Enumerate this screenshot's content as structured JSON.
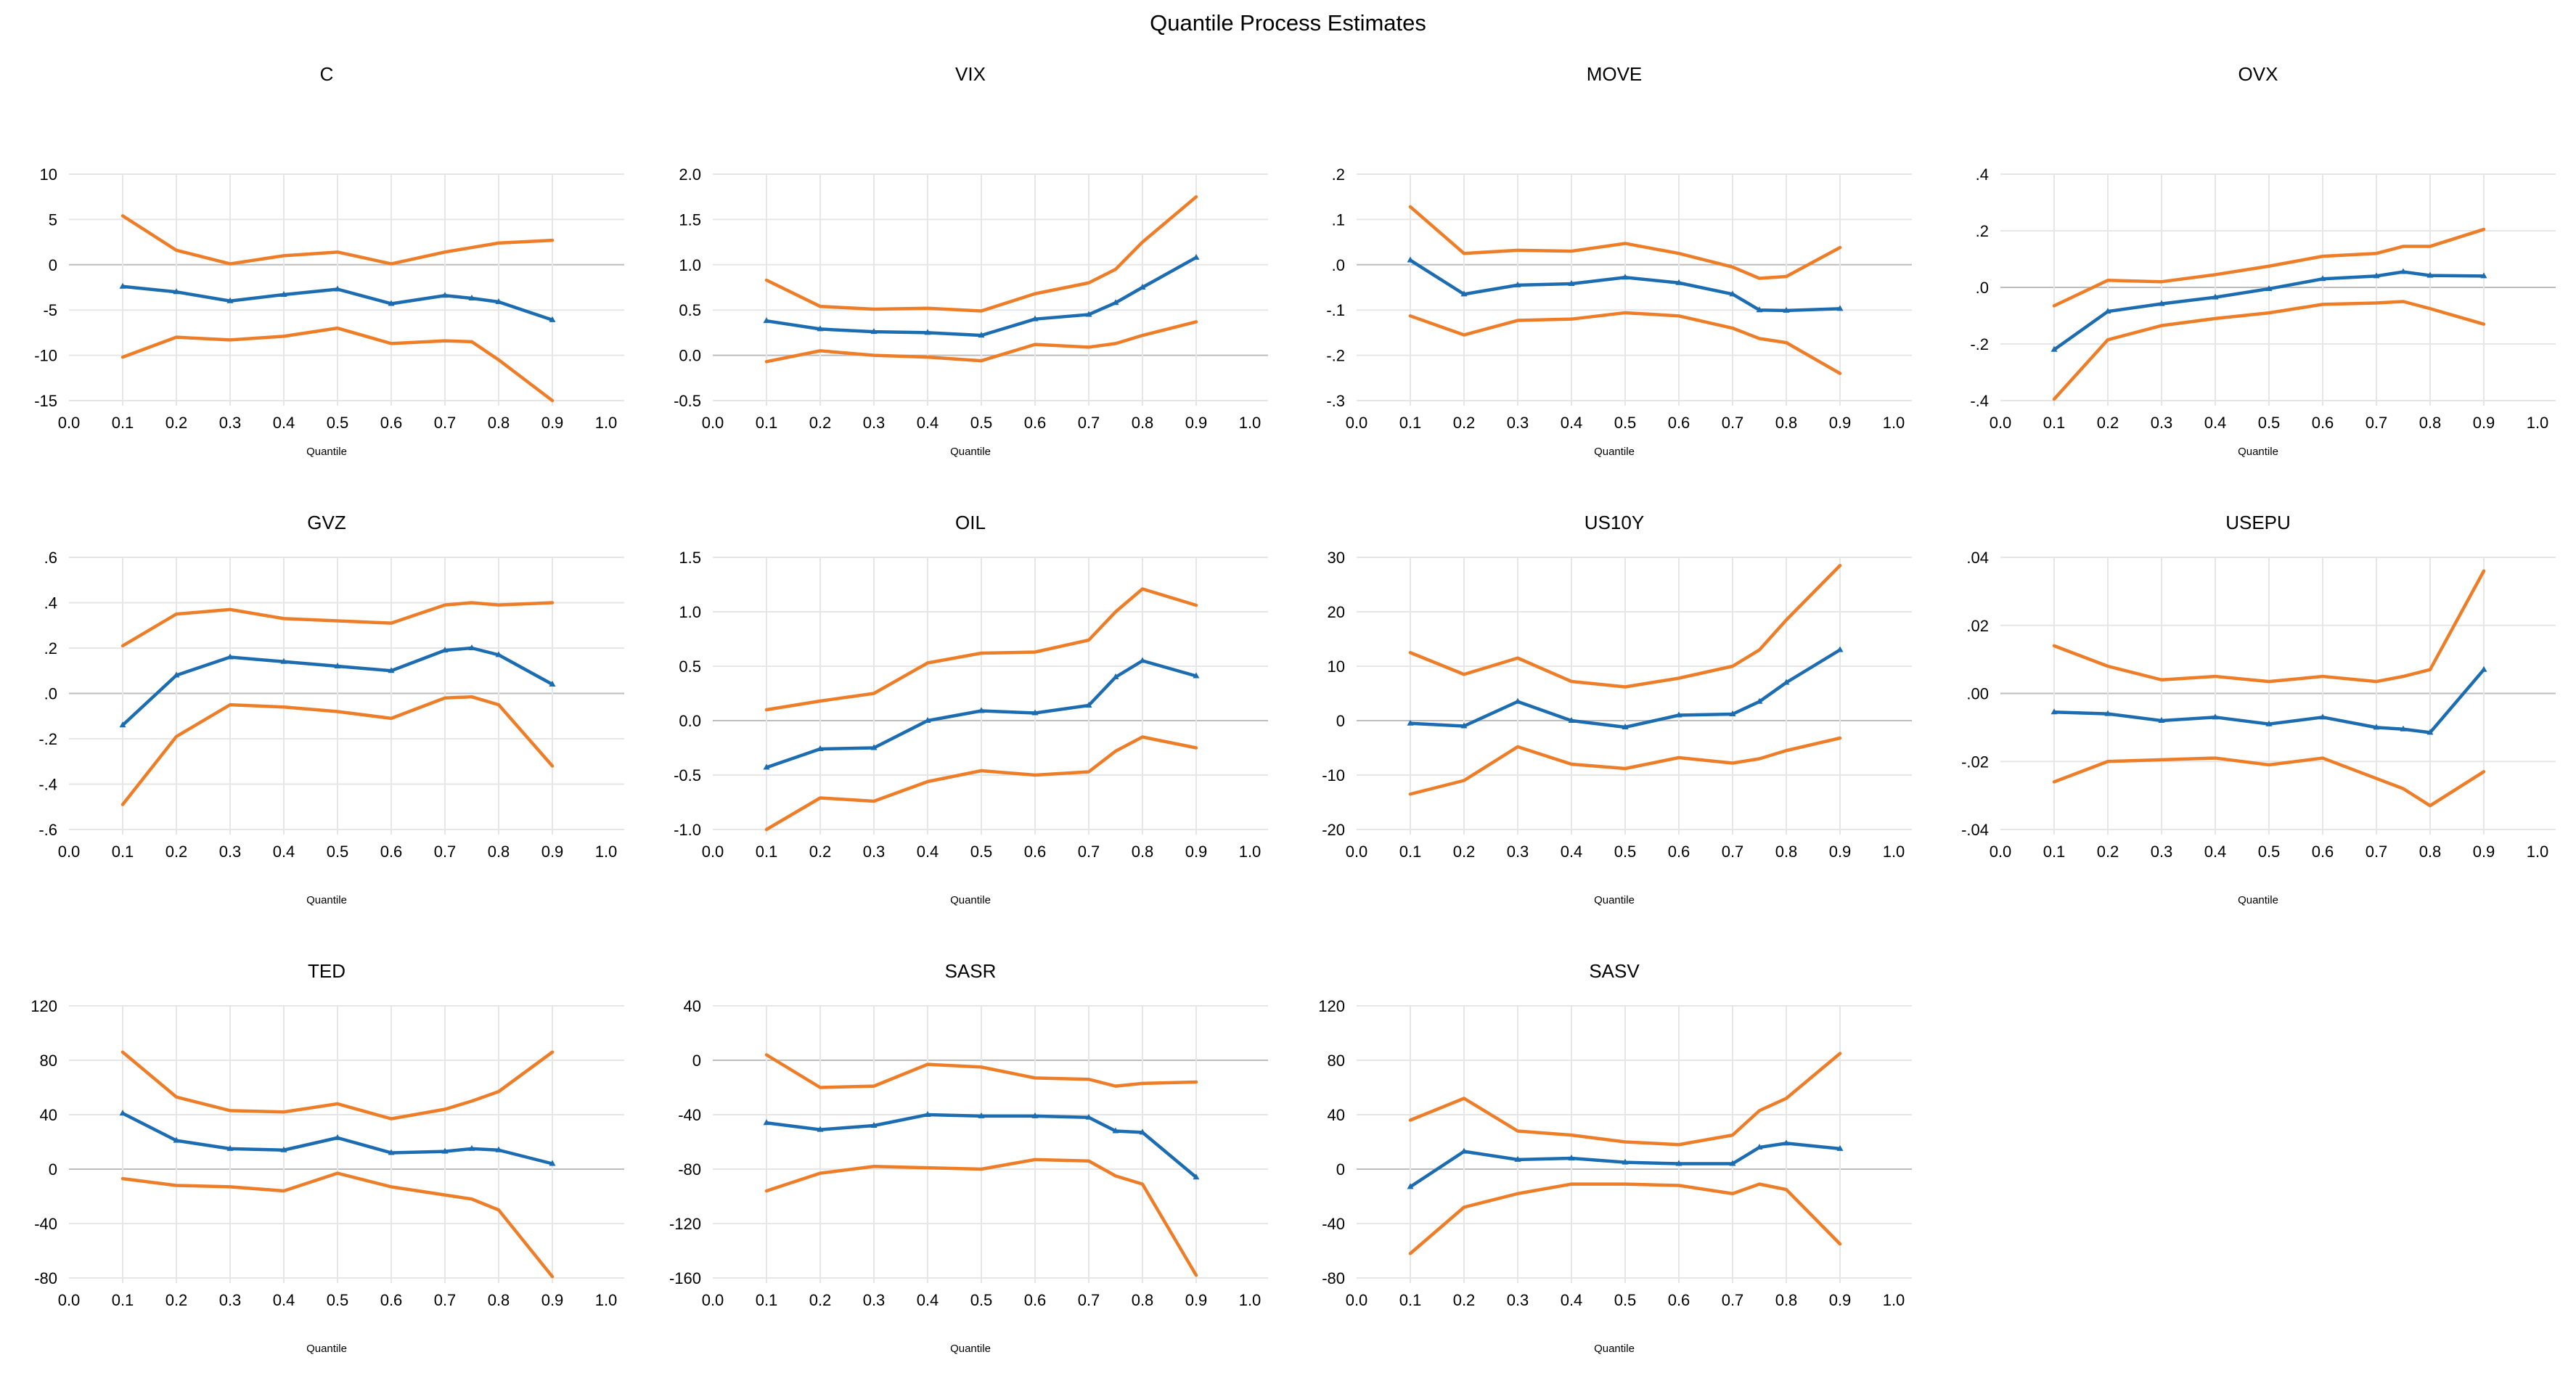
{
  "figure": {
    "title": "Quantile Process Estimates",
    "background": "#ffffff"
  },
  "colors": {
    "estimate_line": "#1b6cb0",
    "ci_line": "#ee7d28",
    "gridline": "#e6e6e6",
    "zero_line": "#bdbdbd",
    "text": "#000000"
  },
  "layout": {
    "columns": 4,
    "rows": 3,
    "grid": "on",
    "legend": "none",
    "x_axis_label": "Quantile"
  },
  "chart_data": [
    {
      "id": "C",
      "title": "C",
      "type": "line",
      "xlabel": "Quantile",
      "x": [
        0.1,
        0.2,
        0.3,
        0.4,
        0.5,
        0.6,
        0.7,
        0.75,
        0.8,
        0.9
      ],
      "x_ticks": [
        0.0,
        0.1,
        0.2,
        0.3,
        0.4,
        0.5,
        0.6,
        0.7,
        0.8,
        0.9,
        1.0
      ],
      "x_tick_labels": [
        "0.0",
        "0.1",
        "0.2",
        "0.3",
        "0.4",
        "0.5",
        "0.6",
        "0.7",
        "0.8",
        "0.9",
        "1.0"
      ],
      "ylim": [
        -15,
        10
      ],
      "y_ticks": [
        10,
        5,
        0,
        -5,
        -10,
        -15
      ],
      "y_tick_labels": [
        "10",
        "5",
        "0",
        "-5",
        "-10",
        "-15"
      ],
      "series": [
        {
          "name": "estimate",
          "values": [
            -2.4,
            -3.0,
            -4.0,
            -3.3,
            -2.7,
            -4.3,
            -3.4,
            -3.7,
            -4.1,
            -6.1
          ]
        },
        {
          "name": "upper_ci",
          "values": [
            5.4,
            1.6,
            0.1,
            1.0,
            1.4,
            0.1,
            1.4,
            1.9,
            2.4,
            2.7
          ]
        },
        {
          "name": "lower_ci",
          "values": [
            -10.2,
            -8.0,
            -8.3,
            -7.9,
            -7.0,
            -8.7,
            -8.4,
            -8.5,
            -10.5,
            -15.0
          ]
        }
      ]
    },
    {
      "id": "VIX",
      "title": "VIX",
      "type": "line",
      "xlabel": "Quantile",
      "x": [
        0.1,
        0.2,
        0.3,
        0.4,
        0.5,
        0.6,
        0.7,
        0.75,
        0.8,
        0.9
      ],
      "x_ticks": [
        0.0,
        0.1,
        0.2,
        0.3,
        0.4,
        0.5,
        0.6,
        0.7,
        0.8,
        0.9,
        1.0
      ],
      "x_tick_labels": [
        "0.0",
        "0.1",
        "0.2",
        "0.3",
        "0.4",
        "0.5",
        "0.6",
        "0.7",
        "0.8",
        "0.9",
        "1.0"
      ],
      "ylim": [
        -0.5,
        2.0
      ],
      "y_ticks": [
        2.0,
        1.5,
        1.0,
        0.5,
        0.0,
        -0.5
      ],
      "y_tick_labels": [
        "2.0",
        "1.5",
        "1.0",
        "0.5",
        "0.0",
        "-0.5"
      ],
      "series": [
        {
          "name": "estimate",
          "values": [
            0.38,
            0.29,
            0.26,
            0.25,
            0.22,
            0.4,
            0.45,
            0.58,
            0.75,
            1.08
          ]
        },
        {
          "name": "upper_ci",
          "values": [
            0.83,
            0.54,
            0.51,
            0.52,
            0.49,
            0.68,
            0.8,
            0.95,
            1.25,
            1.75
          ]
        },
        {
          "name": "lower_ci",
          "values": [
            -0.07,
            0.05,
            0.0,
            -0.02,
            -0.06,
            0.12,
            0.09,
            0.13,
            0.22,
            0.37
          ]
        }
      ]
    },
    {
      "id": "MOVE",
      "title": "MOVE",
      "type": "line",
      "xlabel": "Quantile",
      "x": [
        0.1,
        0.2,
        0.3,
        0.4,
        0.5,
        0.6,
        0.7,
        0.75,
        0.8,
        0.9
      ],
      "x_ticks": [
        0.0,
        0.1,
        0.2,
        0.3,
        0.4,
        0.5,
        0.6,
        0.7,
        0.8,
        0.9,
        1.0
      ],
      "x_tick_labels": [
        "0.0",
        "0.1",
        "0.2",
        "0.3",
        "0.4",
        "0.5",
        "0.6",
        "0.7",
        "0.8",
        "0.9",
        "1.0"
      ],
      "ylim": [
        -0.3,
        0.2
      ],
      "y_ticks": [
        0.2,
        0.1,
        0.0,
        -0.1,
        -0.2,
        -0.3
      ],
      "y_tick_labels": [
        ".2",
        ".1",
        ".0",
        "-.1",
        "-.2",
        "-.3"
      ],
      "series": [
        {
          "name": "estimate",
          "values": [
            0.01,
            -0.065,
            -0.045,
            -0.042,
            -0.028,
            -0.04,
            -0.065,
            -0.1,
            -0.101,
            -0.097
          ]
        },
        {
          "name": "upper_ci",
          "values": [
            0.128,
            0.025,
            0.032,
            0.03,
            0.047,
            0.025,
            -0.005,
            -0.03,
            -0.026,
            0.038
          ]
        },
        {
          "name": "lower_ci",
          "values": [
            -0.113,
            -0.155,
            -0.123,
            -0.12,
            -0.106,
            -0.113,
            -0.14,
            -0.163,
            -0.172,
            -0.24
          ]
        }
      ]
    },
    {
      "id": "OVX",
      "title": "OVX",
      "type": "line",
      "xlabel": "Quantile",
      "x": [
        0.1,
        0.2,
        0.3,
        0.4,
        0.5,
        0.6,
        0.7,
        0.75,
        0.8,
        0.9
      ],
      "x_ticks": [
        0.0,
        0.1,
        0.2,
        0.3,
        0.4,
        0.5,
        0.6,
        0.7,
        0.8,
        0.9,
        1.0
      ],
      "x_tick_labels": [
        "0.0",
        "0.1",
        "0.2",
        "0.3",
        "0.4",
        "0.5",
        "0.6",
        "0.7",
        "0.8",
        "0.9",
        "1.0"
      ],
      "ylim": [
        -0.4,
        0.4
      ],
      "y_ticks": [
        0.4,
        0.2,
        0.0,
        -0.2,
        -0.4
      ],
      "y_tick_labels": [
        ".4",
        ".2",
        ".0",
        "-.2",
        "-.4"
      ],
      "series": [
        {
          "name": "estimate",
          "values": [
            -0.22,
            -0.085,
            -0.058,
            -0.035,
            -0.005,
            0.03,
            0.04,
            0.055,
            0.042,
            0.04
          ]
        },
        {
          "name": "upper_ci",
          "values": [
            -0.065,
            0.025,
            0.02,
            0.045,
            0.075,
            0.11,
            0.12,
            0.145,
            0.145,
            0.205
          ]
        },
        {
          "name": "lower_ci",
          "values": [
            -0.395,
            -0.185,
            -0.135,
            -0.11,
            -0.09,
            -0.06,
            -0.055,
            -0.05,
            -0.075,
            -0.13
          ]
        }
      ]
    },
    {
      "id": "GVZ",
      "title": "GVZ",
      "type": "line",
      "xlabel": "Quantile",
      "x": [
        0.1,
        0.2,
        0.3,
        0.4,
        0.5,
        0.6,
        0.7,
        0.75,
        0.8,
        0.9
      ],
      "x_ticks": [
        0.0,
        0.1,
        0.2,
        0.3,
        0.4,
        0.5,
        0.6,
        0.7,
        0.8,
        0.9,
        1.0
      ],
      "x_tick_labels": [
        "0.0",
        "0.1",
        "0.2",
        "0.3",
        "0.4",
        "0.5",
        "0.6",
        "0.7",
        "0.8",
        "0.9",
        "1.0"
      ],
      "ylim": [
        -0.6,
        0.6
      ],
      "y_ticks": [
        0.6,
        0.4,
        0.2,
        0.0,
        -0.2,
        -0.4,
        -0.6
      ],
      "y_tick_labels": [
        ".6",
        ".4",
        ".2",
        ".0",
        "-.2",
        "-.4",
        "-.6"
      ],
      "series": [
        {
          "name": "estimate",
          "values": [
            -0.14,
            0.08,
            0.16,
            0.14,
            0.12,
            0.1,
            0.19,
            0.2,
            0.17,
            0.04
          ]
        },
        {
          "name": "upper_ci",
          "values": [
            0.21,
            0.35,
            0.37,
            0.33,
            0.32,
            0.31,
            0.39,
            0.4,
            0.39,
            0.4
          ]
        },
        {
          "name": "lower_ci",
          "values": [
            -0.49,
            -0.19,
            -0.05,
            -0.06,
            -0.08,
            -0.11,
            -0.02,
            -0.015,
            -0.05,
            -0.32
          ]
        }
      ]
    },
    {
      "id": "OIL",
      "title": "OIL",
      "type": "line",
      "xlabel": "Quantile",
      "x": [
        0.1,
        0.2,
        0.3,
        0.4,
        0.5,
        0.6,
        0.7,
        0.75,
        0.8,
        0.9
      ],
      "x_ticks": [
        0.0,
        0.1,
        0.2,
        0.3,
        0.4,
        0.5,
        0.6,
        0.7,
        0.8,
        0.9,
        1.0
      ],
      "x_tick_labels": [
        "0.0",
        "0.1",
        "0.2",
        "0.3",
        "0.4",
        "0.5",
        "0.6",
        "0.7",
        "0.8",
        "0.9",
        "1.0"
      ],
      "ylim": [
        -1.0,
        1.5
      ],
      "y_ticks": [
        1.5,
        1.0,
        0.5,
        0.0,
        -0.5,
        -1.0
      ],
      "y_tick_labels": [
        "1.5",
        "1.0",
        "0.5",
        "0.0",
        "-0.5",
        "-1.0"
      ],
      "series": [
        {
          "name": "estimate",
          "values": [
            -0.43,
            -0.26,
            -0.25,
            0.0,
            0.09,
            0.07,
            0.14,
            0.4,
            0.55,
            0.41
          ]
        },
        {
          "name": "upper_ci",
          "values": [
            0.1,
            0.18,
            0.25,
            0.53,
            0.62,
            0.63,
            0.74,
            1.0,
            1.21,
            1.06
          ]
        },
        {
          "name": "lower_ci",
          "values": [
            -1.0,
            -0.71,
            -0.74,
            -0.56,
            -0.46,
            -0.5,
            -0.47,
            -0.28,
            -0.15,
            -0.25
          ]
        }
      ]
    },
    {
      "id": "US10Y",
      "title": "US10Y",
      "type": "line",
      "xlabel": "Quantile",
      "x": [
        0.1,
        0.2,
        0.3,
        0.4,
        0.5,
        0.6,
        0.7,
        0.75,
        0.8,
        0.9
      ],
      "x_ticks": [
        0.0,
        0.1,
        0.2,
        0.3,
        0.4,
        0.5,
        0.6,
        0.7,
        0.8,
        0.9,
        1.0
      ],
      "x_tick_labels": [
        "0.0",
        "0.1",
        "0.2",
        "0.3",
        "0.4",
        "0.5",
        "0.6",
        "0.7",
        "0.8",
        "0.9",
        "1.0"
      ],
      "ylim": [
        -20,
        30
      ],
      "y_ticks": [
        30,
        20,
        10,
        0,
        -10,
        -20
      ],
      "y_tick_labels": [
        "30",
        "20",
        "10",
        "0",
        "-10",
        "-20"
      ],
      "series": [
        {
          "name": "estimate",
          "values": [
            -0.5,
            -1.0,
            3.5,
            0.0,
            -1.2,
            1.0,
            1.2,
            3.5,
            7.0,
            13.0
          ]
        },
        {
          "name": "upper_ci",
          "values": [
            12.5,
            8.5,
            11.5,
            7.2,
            6.2,
            7.8,
            10.0,
            13.0,
            18.5,
            28.5
          ]
        },
        {
          "name": "lower_ci",
          "values": [
            -13.5,
            -11.0,
            -4.8,
            -8.0,
            -8.8,
            -6.8,
            -7.8,
            -7.0,
            -5.5,
            -3.2
          ]
        }
      ]
    },
    {
      "id": "USEPU",
      "title": "USEPU",
      "type": "line",
      "xlabel": "Quantile",
      "x": [
        0.1,
        0.2,
        0.3,
        0.4,
        0.5,
        0.6,
        0.7,
        0.75,
        0.8,
        0.9
      ],
      "x_ticks": [
        0.0,
        0.1,
        0.2,
        0.3,
        0.4,
        0.5,
        0.6,
        0.7,
        0.8,
        0.9,
        1.0
      ],
      "x_tick_labels": [
        "0.0",
        "0.1",
        "0.2",
        "0.3",
        "0.4",
        "0.5",
        "0.6",
        "0.7",
        "0.8",
        "0.9",
        "1.0"
      ],
      "ylim": [
        -0.04,
        0.04
      ],
      "y_ticks": [
        0.04,
        0.02,
        0.0,
        -0.02,
        -0.04
      ],
      "y_tick_labels": [
        ".04",
        ".02",
        ".00",
        "-.02",
        "-.04"
      ],
      "series": [
        {
          "name": "estimate",
          "values": [
            -0.0055,
            -0.006,
            -0.008,
            -0.007,
            -0.009,
            -0.007,
            -0.01,
            -0.0105,
            -0.0115,
            0.007
          ]
        },
        {
          "name": "upper_ci",
          "values": [
            0.014,
            0.008,
            0.004,
            0.005,
            0.0035,
            0.005,
            0.0035,
            0.005,
            0.007,
            0.036
          ]
        },
        {
          "name": "lower_ci",
          "values": [
            -0.026,
            -0.02,
            -0.0195,
            -0.019,
            -0.021,
            -0.019,
            -0.025,
            -0.028,
            -0.033,
            -0.023
          ]
        }
      ]
    },
    {
      "id": "TED",
      "title": "TED",
      "type": "line",
      "xlabel": "Quantile",
      "x": [
        0.1,
        0.2,
        0.3,
        0.4,
        0.5,
        0.6,
        0.7,
        0.75,
        0.8,
        0.9
      ],
      "x_ticks": [
        0.0,
        0.1,
        0.2,
        0.3,
        0.4,
        0.5,
        0.6,
        0.7,
        0.8,
        0.9,
        1.0
      ],
      "x_tick_labels": [
        "0.0",
        "0.1",
        "0.2",
        "0.3",
        "0.4",
        "0.5",
        "0.6",
        "0.7",
        "0.8",
        "0.9",
        "1.0"
      ],
      "ylim": [
        -80,
        120
      ],
      "y_ticks": [
        120,
        80,
        40,
        0,
        -40,
        -80
      ],
      "y_tick_labels": [
        "120",
        "80",
        "40",
        "0",
        "-40",
        "-80"
      ],
      "series": [
        {
          "name": "estimate",
          "values": [
            41,
            21,
            15,
            14,
            23,
            12,
            13,
            15,
            14,
            4
          ]
        },
        {
          "name": "upper_ci",
          "values": [
            86,
            53,
            43,
            42,
            48,
            37,
            44,
            50,
            57,
            86
          ]
        },
        {
          "name": "lower_ci",
          "values": [
            -7,
            -12,
            -13,
            -16,
            -3,
            -13,
            -19,
            -22,
            -30,
            -79
          ]
        }
      ]
    },
    {
      "id": "SASR",
      "title": "SASR",
      "type": "line",
      "xlabel": "Quantile",
      "x": [
        0.1,
        0.2,
        0.3,
        0.4,
        0.5,
        0.6,
        0.7,
        0.75,
        0.8,
        0.9
      ],
      "x_ticks": [
        0.0,
        0.1,
        0.2,
        0.3,
        0.4,
        0.5,
        0.6,
        0.7,
        0.8,
        0.9,
        1.0
      ],
      "x_tick_labels": [
        "0.0",
        "0.1",
        "0.2",
        "0.3",
        "0.4",
        "0.5",
        "0.6",
        "0.7",
        "0.8",
        "0.9",
        "1.0"
      ],
      "ylim": [
        -160,
        40
      ],
      "y_ticks": [
        40,
        0,
        -40,
        -80,
        -120,
        -160
      ],
      "y_tick_labels": [
        "40",
        "0",
        "-40",
        "-80",
        "-120",
        "-160"
      ],
      "series": [
        {
          "name": "estimate",
          "values": [
            -46,
            -51,
            -48,
            -40,
            -41,
            -41,
            -42,
            -52,
            -53,
            -86
          ]
        },
        {
          "name": "upper_ci",
          "values": [
            4,
            -20,
            -19,
            -3,
            -5,
            -13,
            -14,
            -19,
            -17,
            -16
          ]
        },
        {
          "name": "lower_ci",
          "values": [
            -96,
            -83,
            -78,
            -79,
            -80,
            -73,
            -74,
            -85,
            -91,
            -158
          ]
        }
      ]
    },
    {
      "id": "SASV",
      "title": "SASV",
      "type": "line",
      "xlabel": "Quantile",
      "x": [
        0.1,
        0.2,
        0.3,
        0.4,
        0.5,
        0.6,
        0.7,
        0.75,
        0.8,
        0.9
      ],
      "x_ticks": [
        0.0,
        0.1,
        0.2,
        0.3,
        0.4,
        0.5,
        0.6,
        0.7,
        0.8,
        0.9,
        1.0
      ],
      "x_tick_labels": [
        "0.0",
        "0.1",
        "0.2",
        "0.3",
        "0.4",
        "0.5",
        "0.6",
        "0.7",
        "0.8",
        "0.9",
        "1.0"
      ],
      "ylim": [
        -80,
        120
      ],
      "y_ticks": [
        120,
        80,
        40,
        0,
        -40,
        -80
      ],
      "y_tick_labels": [
        "120",
        "80",
        "40",
        "0",
        "-40",
        "-80"
      ],
      "series": [
        {
          "name": "estimate",
          "values": [
            -13,
            13,
            7,
            8,
            5,
            4,
            4,
            16,
            19,
            15
          ]
        },
        {
          "name": "upper_ci",
          "values": [
            36,
            52,
            28,
            25,
            20,
            18,
            25,
            43,
            52,
            85
          ]
        },
        {
          "name": "lower_ci",
          "values": [
            -62,
            -28,
            -18,
            -11,
            -11,
            -12,
            -18,
            -11,
            -15,
            -55
          ]
        }
      ]
    }
  ]
}
